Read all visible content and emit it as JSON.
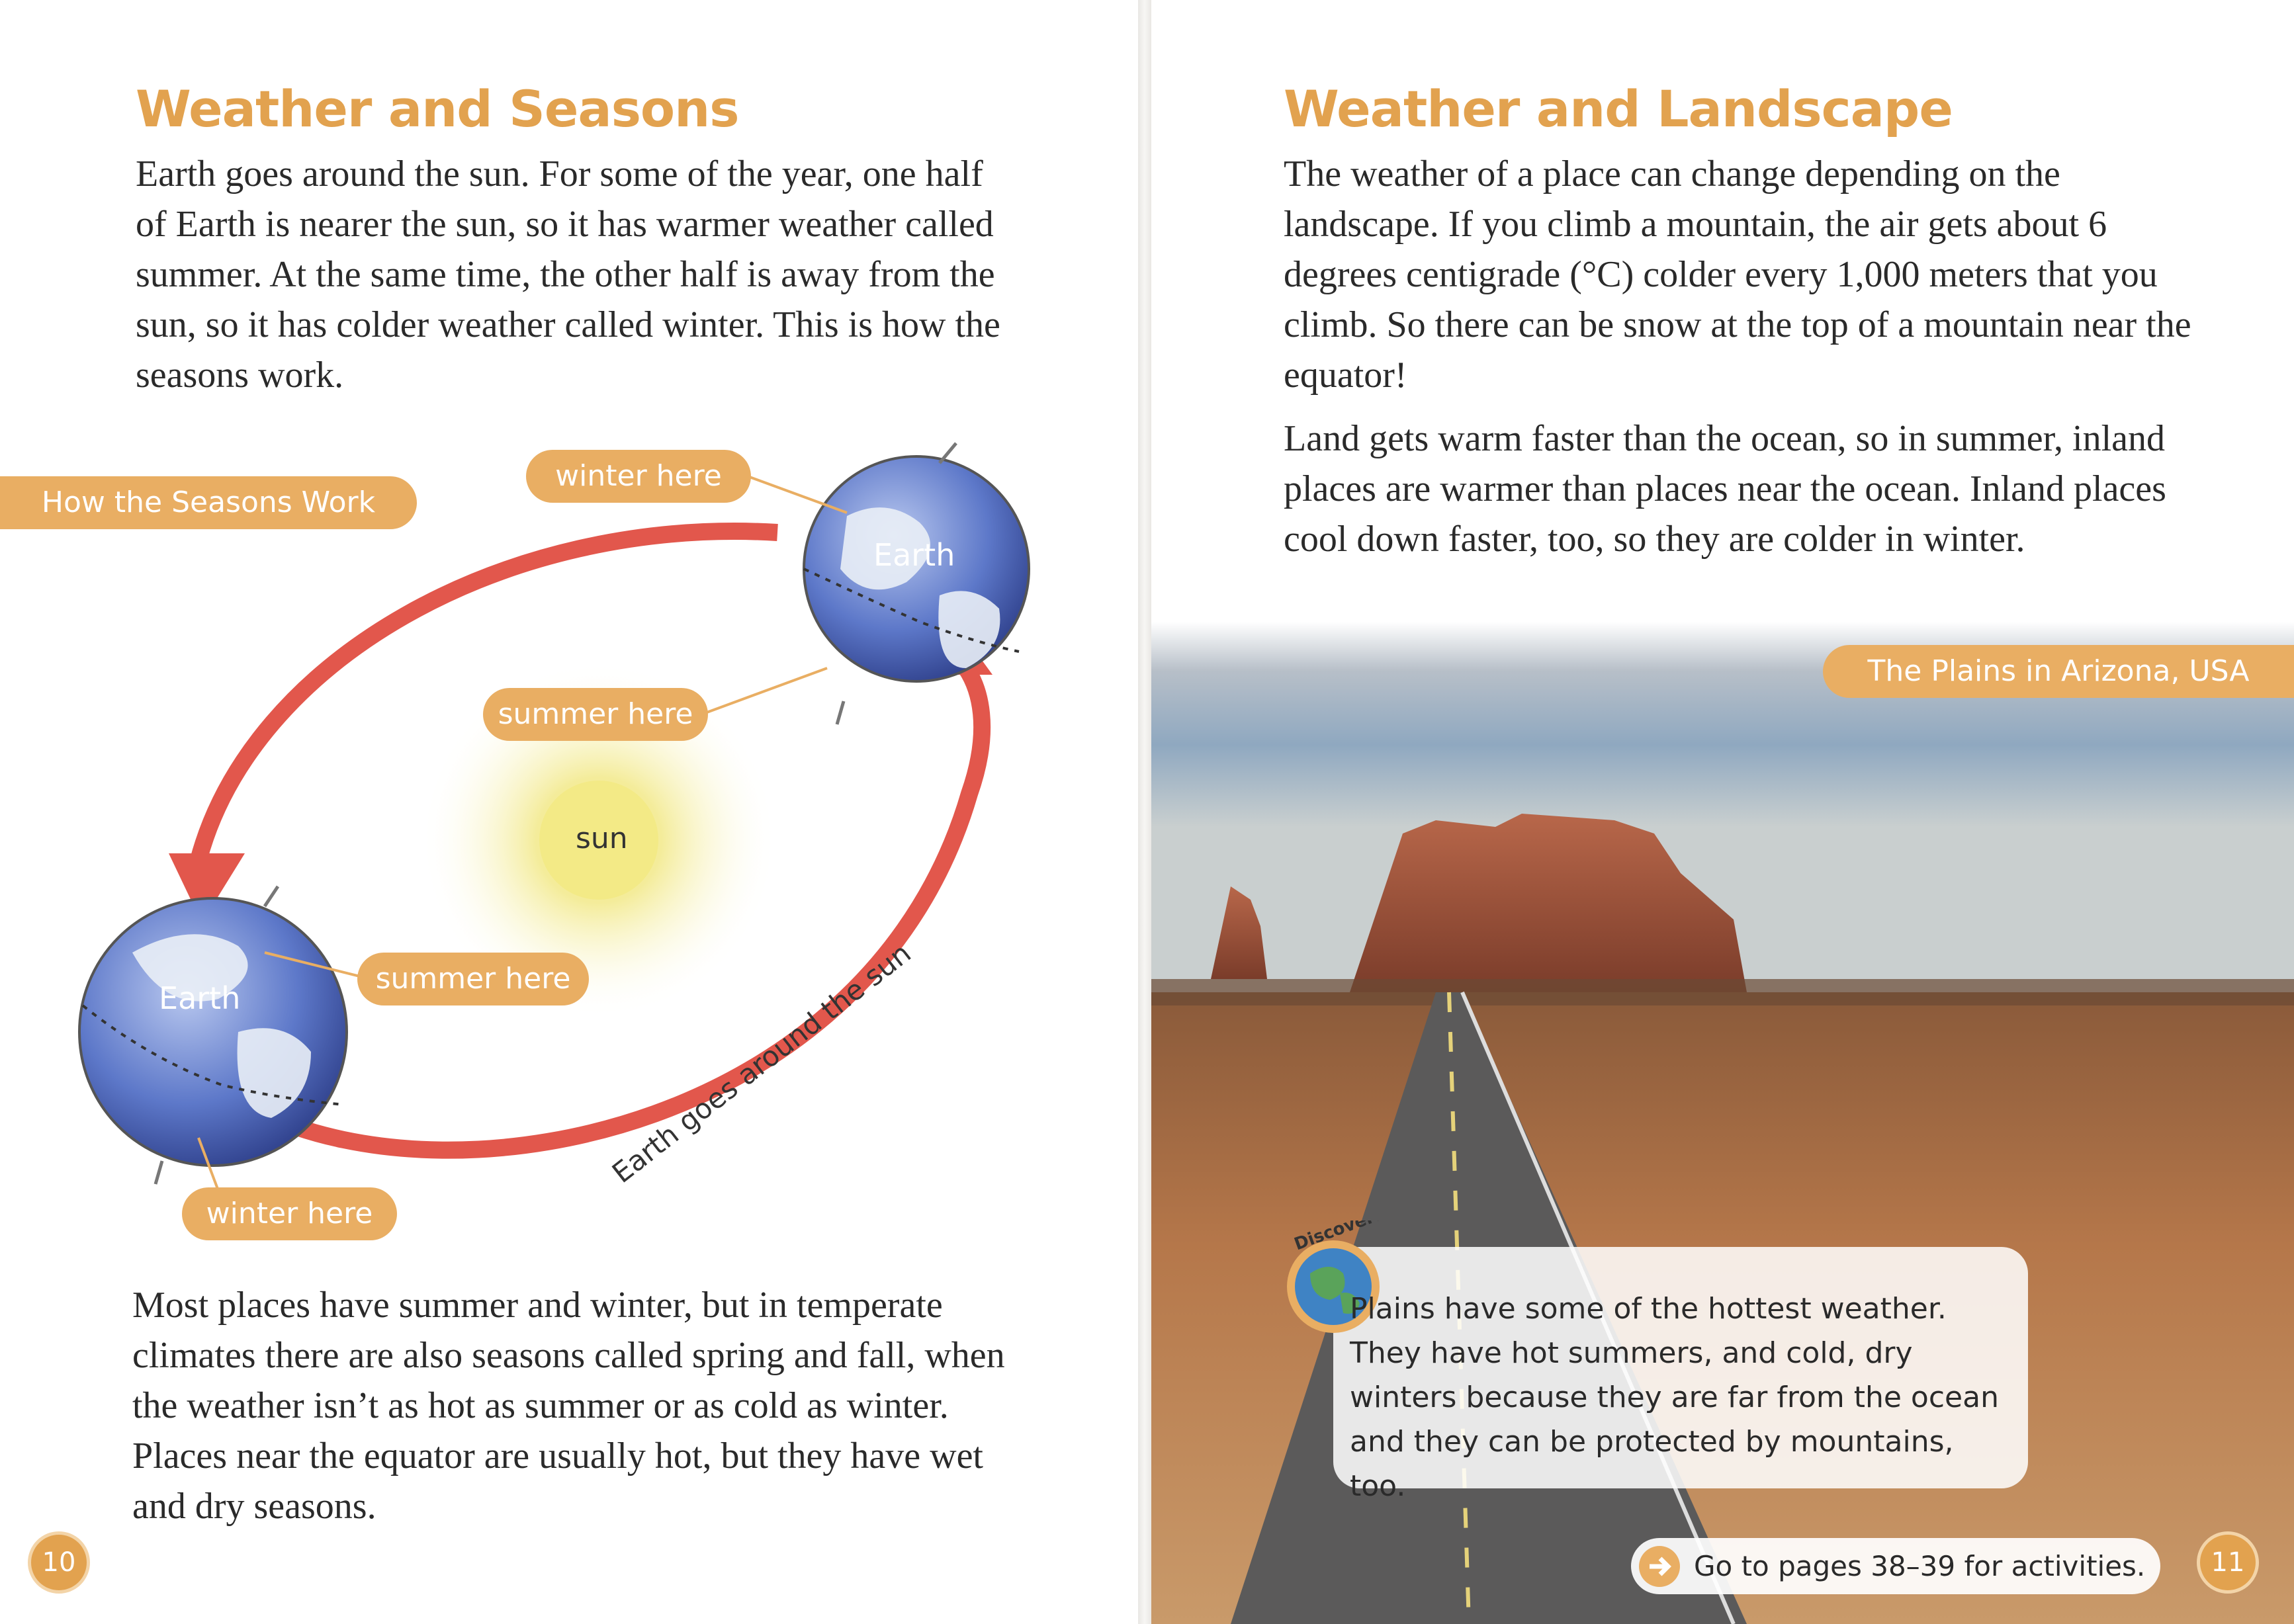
{
  "left_page": {
    "title": "Weather and Seasons",
    "intro": "Earth goes around the sun. For some of the year, one half of Earth is nearer the sun, so it has warmer weather called summer. At the same time, the other half is away from the sun, so it has colder weather called winter. This is how the seasons work.",
    "diagram_tab": "How the Seasons Work",
    "labels": {
      "winter_top": "winter here",
      "summer_top": "summer here",
      "sun": "sun",
      "earth_top": "Earth",
      "earth_bottom": "Earth",
      "summer_bottom": "summer here",
      "winter_bottom": "winter here",
      "orbit_caption": "Earth goes around the sun"
    },
    "closing": "Most places have summer and winter, but in temperate climates there are also seasons called spring and fall, when the weather isn’t as hot as summer or as cold as winter. Places near the equator are usually hot, but they have wet and dry seasons.",
    "page_number": "10"
  },
  "right_page": {
    "title": "Weather and Landscape",
    "para1": "The weather of a place can change depending on the landscape. If you climb a mountain, the air gets about 6 degrees centigrade (°C) colder every 1,000 meters that you climb. So there can be snow at the top of a mountain near the equator!",
    "para2": "Land gets warm faster than the ocean, so in summer, inland places are warmer than places near the ocean. Inland places cool down faster, too, so they are colder in winter.",
    "photo_tab": "The Plains in Arizona, USA",
    "discover_badge": "Discover!",
    "discover_text": "Plains have some of the hottest weather. They have hot summers, and cold, dry winters because they are far from the ocean and they can be protected by mountains, too.",
    "goto_text": "Go to pages 38–39 for activities.",
    "page_number": "11"
  },
  "colors": {
    "heading": "#e2a24f",
    "pill": "#e9ae63",
    "orbit_arrow": "#e2574c",
    "earth": "#5d78c9",
    "sun": "#f3ea86"
  }
}
